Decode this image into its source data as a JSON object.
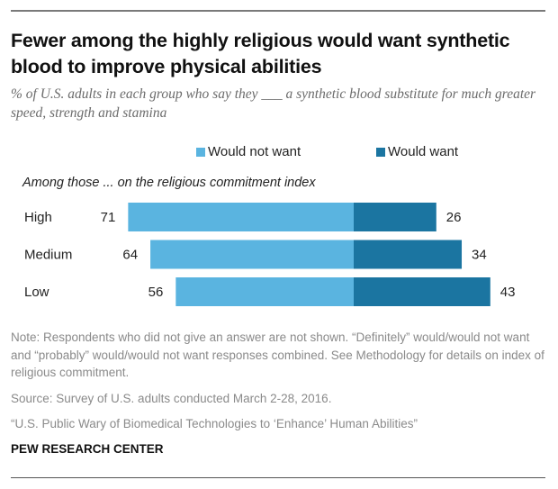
{
  "title": "Fewer among the highly religious would want synthetic blood to improve physical abilities",
  "subtitle": "% of U.S. adults in each group who say they ___ a synthetic blood substitute for much greater speed, strength and stamina",
  "group_heading": "Among those ... on the religious commitment index",
  "colors": {
    "would_not_want": "#5ab4e0",
    "would_want": "#1b75a1"
  },
  "chart_data": {
    "type": "bar",
    "orientation": "horizontal-diverging",
    "title": "Fewer among the highly religious would want synthetic blood to improve physical abilities",
    "categories": [
      "High",
      "Medium",
      "Low"
    ],
    "series": [
      {
        "name": "Would not want",
        "values": [
          71,
          64,
          56
        ],
        "side": "left"
      },
      {
        "name": "Would want",
        "values": [
          26,
          34,
          43
        ],
        "side": "right"
      }
    ],
    "xlabel": "",
    "ylabel": "",
    "legend": "top-center",
    "grid": false
  },
  "notes": {
    "note": "Note: Respondents who did not give an answer are not shown. “Definitely” would/would not want and “probably” would/would not want responses combined. See Methodology for details on index of religious commitment.",
    "source": "Source: Survey of U.S. adults conducted March 2-28, 2016.",
    "report": "“U.S. Public Wary of Biomedical Technologies to ‘Enhance’ Human Abilities”",
    "brand": "PEW RESEARCH CENTER"
  }
}
